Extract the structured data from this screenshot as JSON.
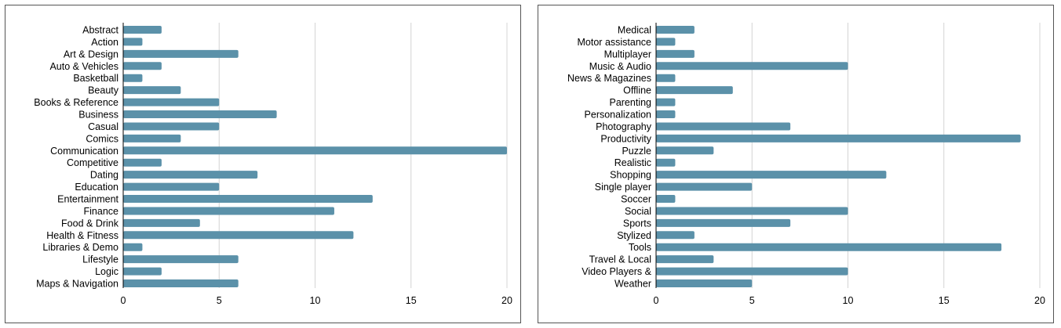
{
  "colors": {
    "bar": "#5b91a9",
    "grid": "#d4d4d4",
    "axis": "#000000"
  },
  "chart_data": [
    {
      "type": "bar",
      "orientation": "horizontal",
      "title": "",
      "xlabel": "",
      "ylabel": "",
      "xlim": [
        0,
        20
      ],
      "xticks": [
        0,
        5,
        10,
        15,
        20
      ],
      "grid": "vertical",
      "categories": [
        "Abstract",
        "Action",
        "Art & Design",
        "Auto & Vehicles",
        "Basketball",
        "Beauty",
        "Books & Reference",
        "Business",
        "Casual",
        "Comics",
        "Communication",
        "Competitive",
        "Dating",
        "Education",
        "Entertainment",
        "Finance",
        "Food & Drink",
        "Health & Fitness",
        "Libraries & Demo",
        "Lifestyle",
        "Logic",
        "Maps & Navigation"
      ],
      "values": [
        2,
        1,
        6,
        2,
        1,
        3,
        5,
        8,
        5,
        3,
        20,
        2,
        7,
        5,
        13,
        11,
        4,
        12,
        1,
        6,
        2,
        6
      ]
    },
    {
      "type": "bar",
      "orientation": "horizontal",
      "title": "",
      "xlabel": "",
      "ylabel": "",
      "xlim": [
        0,
        20
      ],
      "xticks": [
        0,
        5,
        10,
        15,
        20
      ],
      "grid": "vertical",
      "categories": [
        "Medical",
        "Motor assistance",
        "Multiplayer",
        "Music & Audio",
        "News & Magazines",
        "Offline",
        "Parenting",
        "Personalization",
        "Photography",
        "Productivity",
        "Puzzle",
        "Realistic",
        "Shopping",
        "Single player",
        "Soccer",
        "Social",
        "Sports",
        "Stylized",
        "Tools",
        "Travel & Local",
        "Video Players &",
        "Weather"
      ],
      "values": [
        2,
        1,
        2,
        10,
        1,
        4,
        1,
        1,
        7,
        19,
        3,
        1,
        12,
        5,
        1,
        10,
        7,
        2,
        18,
        3,
        10,
        5
      ]
    }
  ]
}
